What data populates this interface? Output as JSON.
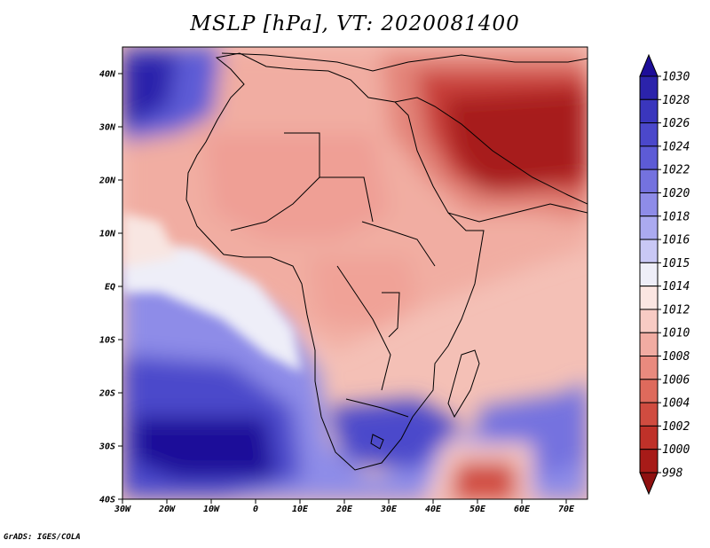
{
  "title": "MSLP [hPa], VT: 2020081400",
  "footer": "GrADS: IGES/COLA",
  "lat_ticks": [
    "40N",
    "30N",
    "20N",
    "10N",
    "EQ",
    "10S",
    "20S",
    "30S",
    "40S"
  ],
  "lon_ticks": [
    "30W",
    "20W",
    "10W",
    "0",
    "10E",
    "20E",
    "30E",
    "40E",
    "50E",
    "60E",
    "70E"
  ],
  "colorbar": {
    "unit": "hPa",
    "levels": [
      "1030",
      "1028",
      "1026",
      "1024",
      "1022",
      "1020",
      "1018",
      "1016",
      "1015",
      "1014",
      "1012",
      "1010",
      "1008",
      "1006",
      "1004",
      "1002",
      "1000",
      "998"
    ],
    "colors": [
      "#1d0d99",
      "#2b23ab",
      "#3a36bd",
      "#4b48cb",
      "#5d5bd6",
      "#7472df",
      "#8e8ce8",
      "#abaaf0",
      "#c9c8f5",
      "#eeeef8",
      "#fbe6e2",
      "#f8cbc4",
      "#f1aca2",
      "#e98a7e",
      "#de6a5c",
      "#d04c40",
      "#bf3129",
      "#a71b18",
      "#8f1010"
    ]
  }
}
